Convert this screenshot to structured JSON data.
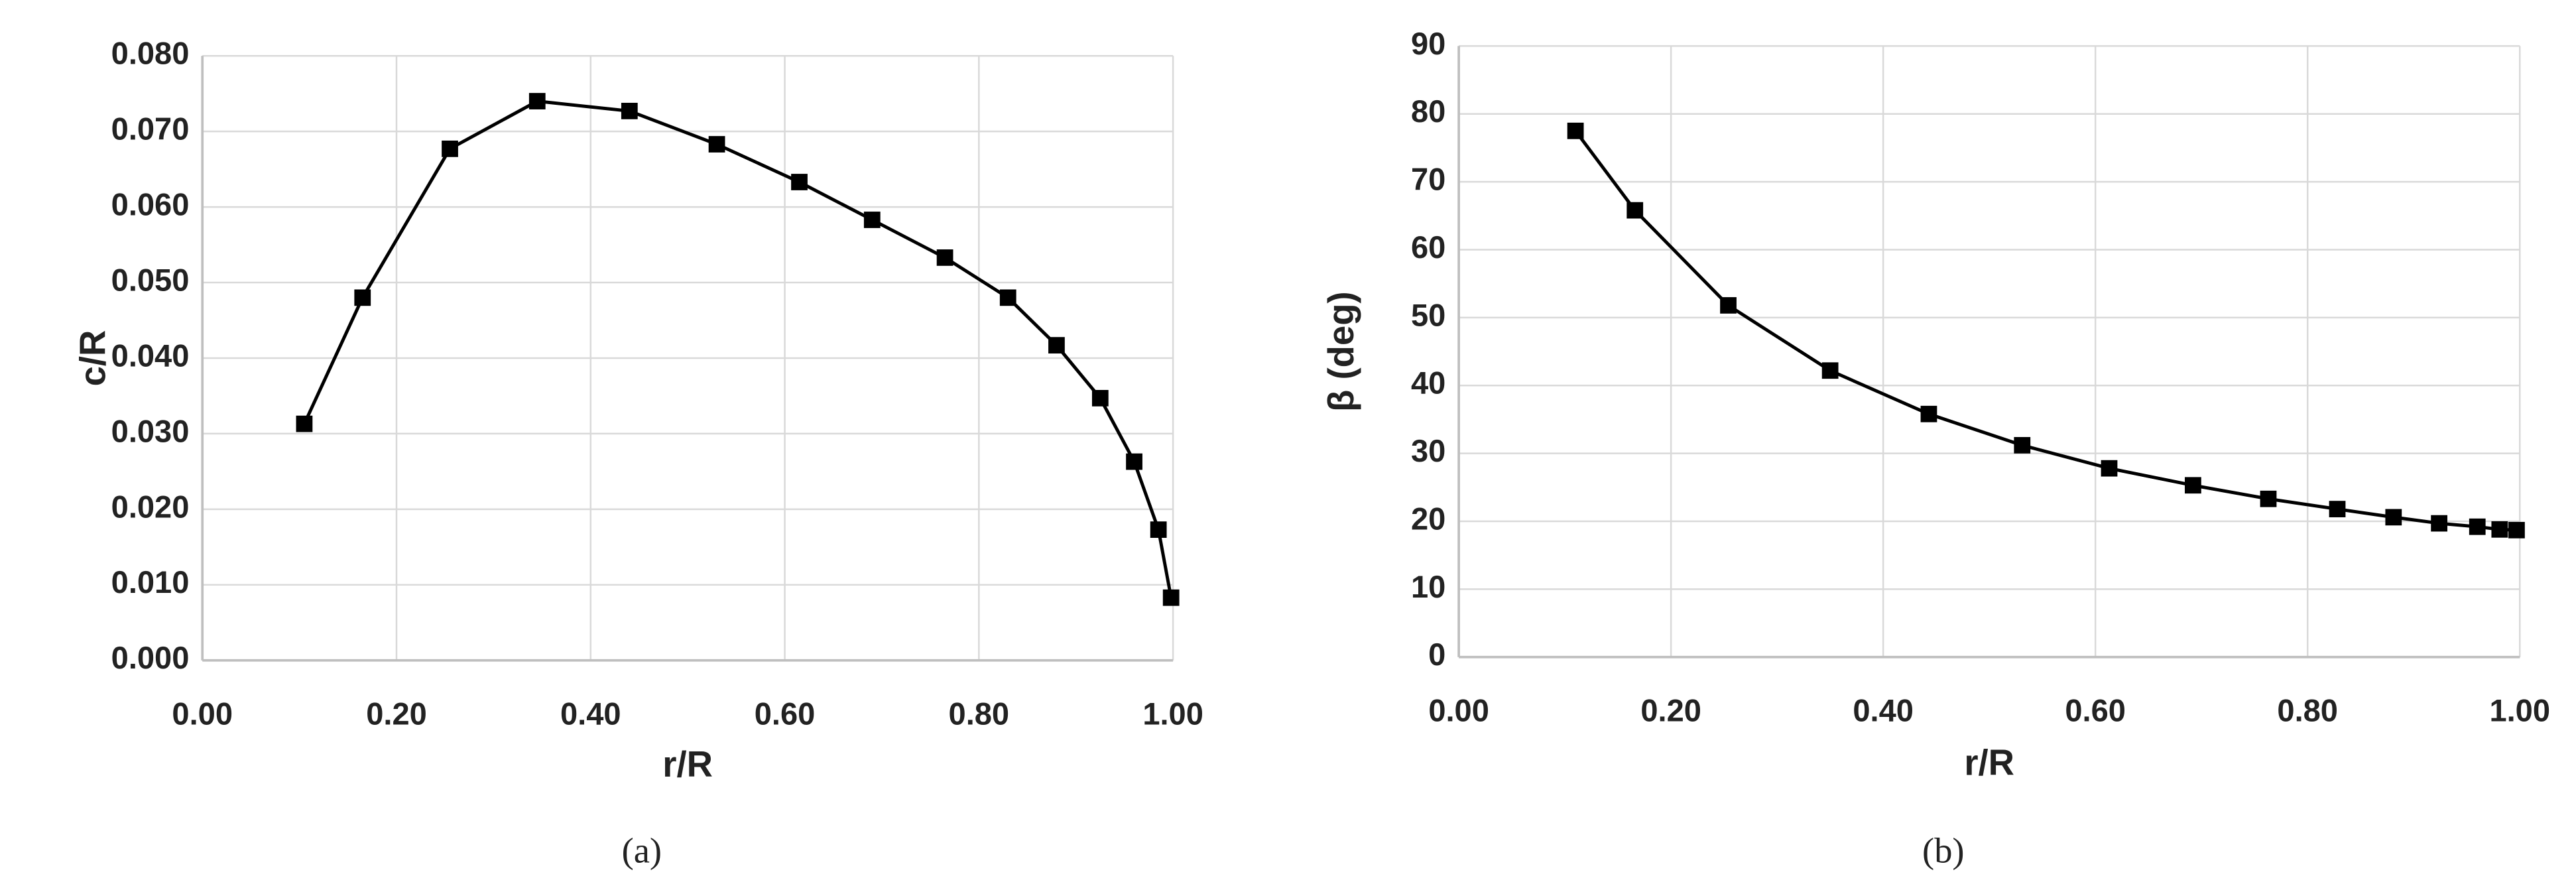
{
  "chart_data": [
    {
      "type": "line",
      "caption": "(a)",
      "xlabel": "r/R",
      "ylabel": "c/R",
      "color": "#000000",
      "grid": true,
      "x": [
        0.105,
        0.165,
        0.255,
        0.345,
        0.44,
        0.53,
        0.615,
        0.69,
        0.765,
        0.83,
        0.88,
        0.925,
        0.96,
        0.985,
        0.998
      ],
      "values": [
        0.0313,
        0.048,
        0.0677,
        0.074,
        0.0727,
        0.0683,
        0.0633,
        0.0583,
        0.0533,
        0.048,
        0.0417,
        0.0347,
        0.0263,
        0.0173,
        0.0083
      ],
      "xlim": [
        0,
        1
      ],
      "ylim": [
        0,
        0.08
      ],
      "xticks": [
        {
          "value": 0,
          "label": "0.00"
        },
        {
          "value": 0.2,
          "label": "0.20"
        },
        {
          "value": 0.4,
          "label": "0.40"
        },
        {
          "value": 0.6,
          "label": "0.60"
        },
        {
          "value": 0.8,
          "label": "0.80"
        },
        {
          "value": 1,
          "label": "1.00"
        }
      ],
      "yticks": [
        {
          "value": 0,
          "label": "0.000"
        },
        {
          "value": 0.01,
          "label": "0.010"
        },
        {
          "value": 0.02,
          "label": "0.020"
        },
        {
          "value": 0.03,
          "label": "0.030"
        },
        {
          "value": 0.04,
          "label": "0.040"
        },
        {
          "value": 0.05,
          "label": "0.050"
        },
        {
          "value": 0.06,
          "label": "0.060"
        },
        {
          "value": 0.07,
          "label": "0.070"
        },
        {
          "value": 0.08,
          "label": "0.080"
        }
      ]
    },
    {
      "type": "line",
      "caption": "(b)",
      "xlabel": "r/R",
      "ylabel": "β (deg)",
      "color": "#000000",
      "grid": true,
      "x": [
        0.11,
        0.166,
        0.254,
        0.35,
        0.443,
        0.531,
        0.613,
        0.692,
        0.763,
        0.828,
        0.881,
        0.924,
        0.96,
        0.981,
        0.997
      ],
      "values": [
        77.5,
        65.8,
        51.8,
        42.2,
        35.8,
        31.2,
        27.8,
        25.3,
        23.3,
        21.8,
        20.6,
        19.7,
        19.2,
        18.8,
        18.7
      ],
      "xlim": [
        0,
        1
      ],
      "ylim": [
        0,
        90
      ],
      "xticks": [
        {
          "value": 0,
          "label": "0.00"
        },
        {
          "value": 0.2,
          "label": "0.20"
        },
        {
          "value": 0.4,
          "label": "0.40"
        },
        {
          "value": 0.6,
          "label": "0.60"
        },
        {
          "value": 0.8,
          "label": "0.80"
        },
        {
          "value": 1,
          "label": "1.00"
        }
      ],
      "yticks": [
        0,
        10,
        20,
        30,
        40,
        50,
        60,
        70,
        80,
        90
      ]
    }
  ]
}
